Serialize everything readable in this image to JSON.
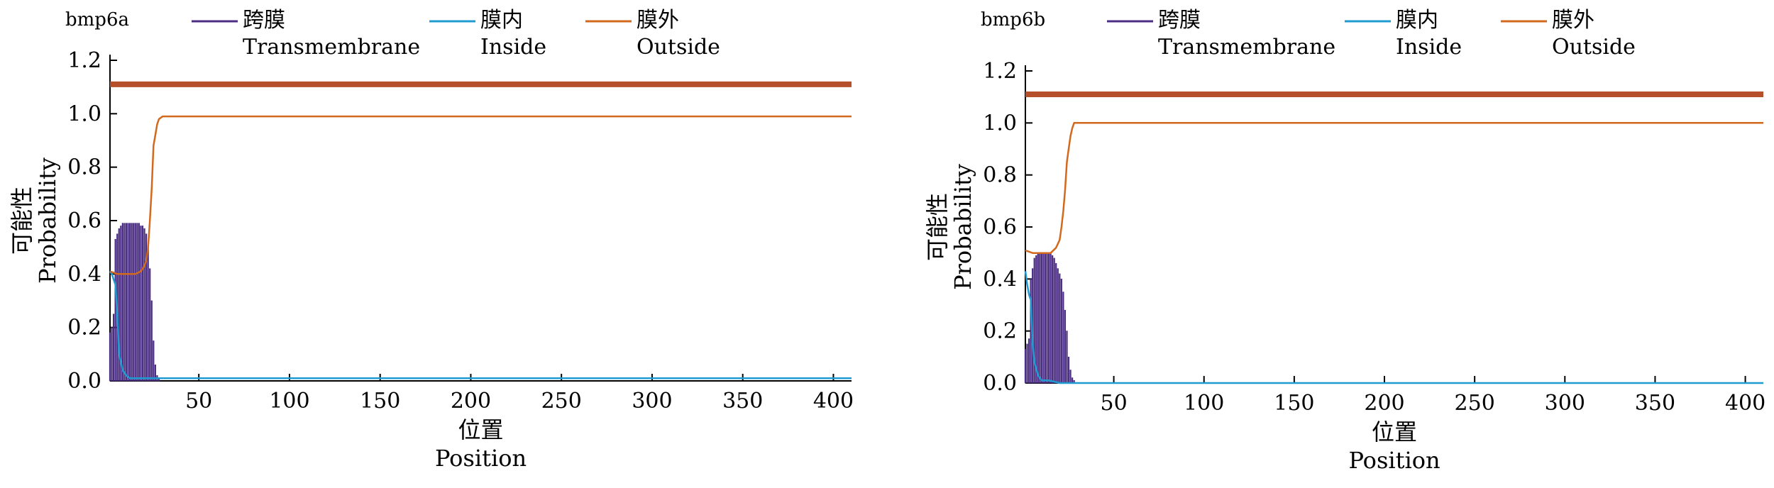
{
  "chart_data": [
    {
      "type": "line",
      "panel_label": "bmp6a",
      "legend": [
        {
          "cn": "跨膜",
          "en": "Transmembrane",
          "color": "#4b2e83"
        },
        {
          "cn": "膜内",
          "en": "Inside",
          "color": "#1f9bd1"
        },
        {
          "cn": "膜外",
          "en": "Outside",
          "color": "#d2691e"
        }
      ],
      "xlabel_cn": "位置",
      "xlabel_en": "Position",
      "ylabel_cn": "可能性",
      "ylabel_en": "Probability",
      "xlim": [
        1,
        410
      ],
      "ylim": [
        0,
        1.2
      ],
      "xticks": [
        50,
        100,
        150,
        200,
        250,
        300,
        350,
        400
      ],
      "yticks": [
        "0.0",
        "0.2",
        "0.4",
        "0.6",
        "0.8",
        "1.0",
        "1.2"
      ],
      "top_bar": {
        "y": 1.11,
        "color": "#b5502a"
      },
      "series": [
        {
          "name": "Transmembrane",
          "style": "bars",
          "color": "#4b2e83",
          "x": [
            1,
            2,
            3,
            4,
            5,
            6,
            7,
            8,
            9,
            10,
            11,
            12,
            13,
            14,
            15,
            16,
            17,
            18,
            19,
            20,
            21,
            22,
            23,
            24,
            25,
            26,
            27,
            28
          ],
          "values": [
            0.18,
            0.2,
            0.25,
            0.53,
            0.55,
            0.57,
            0.58,
            0.59,
            0.59,
            0.59,
            0.59,
            0.59,
            0.59,
            0.59,
            0.59,
            0.59,
            0.59,
            0.58,
            0.58,
            0.57,
            0.55,
            0.5,
            0.42,
            0.3,
            0.15,
            0.06,
            0.02,
            0.01
          ]
        },
        {
          "name": "Inside",
          "style": "line",
          "color": "#1f9bd1",
          "x": [
            1,
            2,
            3,
            4,
            5,
            6,
            8,
            10,
            12,
            20,
            26,
            30,
            60,
            410
          ],
          "values": [
            0.41,
            0.4,
            0.38,
            0.36,
            0.25,
            0.1,
            0.04,
            0.02,
            0.01,
            0.01,
            0.01,
            0.01,
            0.01,
            0.01
          ]
        },
        {
          "name": "Outside",
          "style": "line",
          "color": "#d2691e",
          "x": [
            1,
            5,
            10,
            15,
            18,
            20,
            21,
            22,
            23,
            24,
            25,
            26,
            27,
            28,
            30,
            60,
            410
          ],
          "values": [
            0.41,
            0.4,
            0.4,
            0.4,
            0.41,
            0.43,
            0.45,
            0.5,
            0.6,
            0.72,
            0.88,
            0.92,
            0.96,
            0.98,
            0.99,
            0.99,
            0.99
          ]
        }
      ]
    },
    {
      "type": "line",
      "panel_label": "bmp6b",
      "legend": [
        {
          "cn": "跨膜",
          "en": "Transmembrane",
          "color": "#4b2e83"
        },
        {
          "cn": "膜内",
          "en": "Inside",
          "color": "#1f9bd1"
        },
        {
          "cn": "膜外",
          "en": "Outside",
          "color": "#d2691e"
        }
      ],
      "xlabel_cn": "位置",
      "xlabel_en": "Position",
      "ylabel_cn": "可能性",
      "ylabel_en": "Probability",
      "xlim": [
        1,
        410
      ],
      "ylim": [
        0,
        1.2
      ],
      "xticks": [
        50,
        100,
        150,
        200,
        250,
        300,
        350,
        400
      ],
      "yticks": [
        "0.0",
        "0.2",
        "0.4",
        "0.6",
        "0.8",
        "1.0",
        "1.2"
      ],
      "top_bar": {
        "y": 1.11,
        "color": "#b5502a"
      },
      "series": [
        {
          "name": "Transmembrane",
          "style": "bars",
          "color": "#4b2e83",
          "x": [
            1,
            2,
            3,
            4,
            5,
            6,
            7,
            8,
            9,
            10,
            11,
            12,
            13,
            14,
            15,
            16,
            17,
            18,
            19,
            20,
            21,
            22,
            23,
            24,
            25,
            26,
            27,
            28
          ],
          "values": [
            0.13,
            0.15,
            0.17,
            0.4,
            0.44,
            0.48,
            0.49,
            0.5,
            0.5,
            0.5,
            0.5,
            0.5,
            0.5,
            0.5,
            0.5,
            0.49,
            0.48,
            0.46,
            0.44,
            0.42,
            0.4,
            0.35,
            0.28,
            0.2,
            0.1,
            0.05,
            0.02,
            0.01
          ]
        },
        {
          "name": "Inside",
          "style": "line",
          "color": "#1f9bd1",
          "x": [
            1,
            2,
            3,
            4,
            5,
            6,
            8,
            10,
            14,
            20,
            30,
            60,
            410
          ],
          "values": [
            0.43,
            0.38,
            0.34,
            0.32,
            0.15,
            0.08,
            0.03,
            0.01,
            0.01,
            0.0,
            0.0,
            0.0,
            0.0
          ]
        },
        {
          "name": "Outside",
          "style": "line",
          "color": "#d2691e",
          "x": [
            1,
            5,
            10,
            15,
            18,
            20,
            21,
            22,
            23,
            24,
            25,
            26,
            27,
            28,
            30,
            60,
            410
          ],
          "values": [
            0.51,
            0.5,
            0.5,
            0.5,
            0.52,
            0.55,
            0.6,
            0.66,
            0.74,
            0.85,
            0.9,
            0.95,
            0.98,
            1.0,
            1.0,
            1.0,
            1.0
          ]
        }
      ]
    }
  ]
}
